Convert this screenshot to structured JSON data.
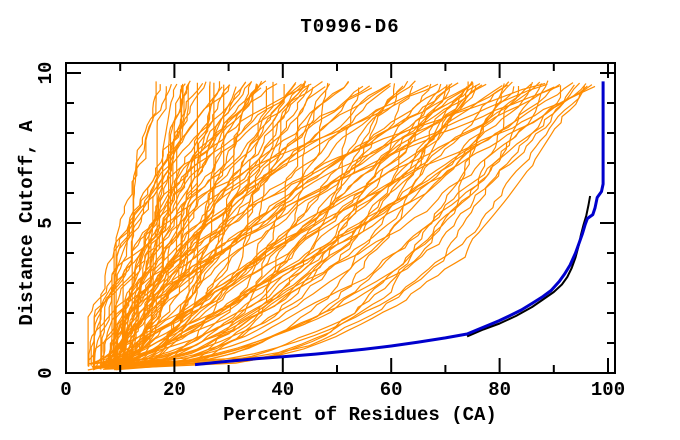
{
  "chart_data": {
    "type": "line",
    "title": "T0996-D6",
    "xlabel": "Percent of Residues (CA)",
    "ylabel": "Distance Cutoff, A",
    "xlim": [
      0,
      100
    ],
    "ylim": [
      0,
      10
    ],
    "x_major_ticks": [
      0,
      20,
      40,
      60,
      80,
      100
    ],
    "x_minor_step": 10,
    "y_major_ticks": [
      0,
      5,
      10
    ],
    "y_minor_step": 1,
    "grid": false,
    "legend": "none",
    "tick_style": "inward ticks on all four sides, y tick labels rotated 90deg",
    "colors": {
      "ensemble": "#ff8c00",
      "highlight": "#0000cd",
      "companion": "#000000",
      "frame": "#000000",
      "background": "#ffffff"
    },
    "series": [
      {
        "name": "all-models-ensemble",
        "style": "ensemble",
        "color": "#ff8c00",
        "count": 112,
        "seed": 1337,
        "description": "Approximately 110 overlapping jagged monotonic GDT curves fanning out from a dense solid wedge at lower-left (4-11% residues at 0.1-0.35 A) up to tips near 9.6 A spread between 16% and 99% of residues",
        "x_start_range": [
          4,
          11
        ],
        "x_top_range": [
          16,
          99
        ],
        "y_start_range": [
          0.1,
          0.35
        ],
        "y_top_range": [
          9.5,
          9.75
        ],
        "shape_power_range": [
          0.28,
          2.2
        ],
        "max_x": 99.2
      },
      {
        "name": "companion-model-black",
        "style": "line",
        "color": "#000000",
        "width": 2,
        "points": [
          [
            74,
            1.22
          ],
          [
            77,
            1.45
          ],
          [
            80,
            1.65
          ],
          [
            83,
            1.9
          ],
          [
            86,
            2.2
          ],
          [
            88,
            2.45
          ],
          [
            90,
            2.7
          ],
          [
            91.5,
            2.95
          ],
          [
            92.5,
            3.2
          ],
          [
            93.3,
            3.5
          ],
          [
            94,
            3.85
          ],
          [
            94.6,
            4.25
          ],
          [
            95,
            4.6
          ],
          [
            95.5,
            4.95
          ],
          [
            96,
            5.25
          ],
          [
            96.4,
            5.6
          ],
          [
            96.7,
            5.9
          ]
        ]
      },
      {
        "name": "highlighted-model-navy",
        "style": "line",
        "color": "#0000cd",
        "width": 3,
        "points": [
          [
            23.8,
            0.28
          ],
          [
            28,
            0.36
          ],
          [
            34,
            0.46
          ],
          [
            40,
            0.54
          ],
          [
            46,
            0.63
          ],
          [
            50,
            0.7
          ],
          [
            55,
            0.79
          ],
          [
            60,
            0.9
          ],
          [
            65,
            1.03
          ],
          [
            70,
            1.17
          ],
          [
            74,
            1.3
          ],
          [
            76,
            1.45
          ],
          [
            78,
            1.6
          ],
          [
            80,
            1.75
          ],
          [
            82,
            1.92
          ],
          [
            84,
            2.1
          ],
          [
            86,
            2.32
          ],
          [
            88,
            2.55
          ],
          [
            89.5,
            2.75
          ],
          [
            91,
            3.05
          ],
          [
            92,
            3.3
          ],
          [
            93,
            3.6
          ],
          [
            94,
            4.0
          ],
          [
            94.7,
            4.35
          ],
          [
            95.3,
            4.65
          ],
          [
            95.8,
            4.95
          ],
          [
            96.2,
            5.15
          ],
          [
            97.2,
            5.28
          ],
          [
            97.6,
            5.5
          ],
          [
            98,
            5.85
          ],
          [
            98.8,
            6.05
          ],
          [
            99.1,
            6.3
          ],
          [
            99.1,
            9.72
          ]
        ]
      }
    ]
  }
}
